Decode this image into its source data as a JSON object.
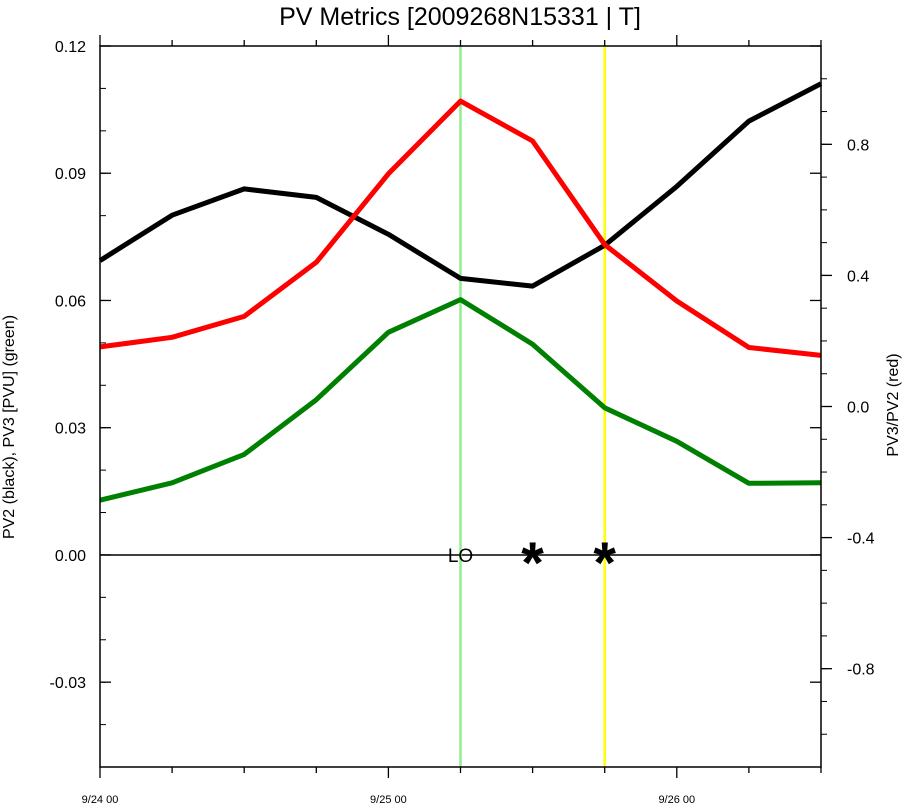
{
  "chart_data": {
    "type": "line",
    "title": "PV Metrics [2009268N15331 | T]",
    "x_tick_labels": [
      "9/24 00",
      "9/25 00",
      "9/26 00"
    ],
    "x_hours": [
      0,
      6,
      12,
      18,
      24,
      30,
      36,
      42,
      48,
      54,
      60
    ],
    "left_axis": {
      "label": "PV2 (black), PV3 [PVU] (green)",
      "ylim": [
        -0.05,
        0.12
      ],
      "ticks": [
        "0.12",
        "0.09",
        "0.06",
        "0.03",
        "0.00",
        "-0.03"
      ],
      "tick_values": [
        0.12,
        0.09,
        0.06,
        0.03,
        0.0,
        -0.03
      ]
    },
    "right_axis": {
      "label": "PV3/PV2 (red)",
      "ylim": [
        -1.1,
        1.1
      ],
      "ticks": [
        "0.8",
        "0.4",
        "0.0",
        "-0.4",
        "-0.8"
      ],
      "tick_values": [
        0.8,
        0.4,
        0.0,
        -0.4,
        -0.8
      ]
    },
    "series": [
      {
        "name": "PV2",
        "color": "#000000",
        "axis": "left",
        "values": [
          0.0694,
          0.0801,
          0.0863,
          0.0843,
          0.0756,
          0.0652,
          0.0634,
          0.073,
          0.0869,
          0.1023,
          0.1111
        ]
      },
      {
        "name": "PV3",
        "color": "#008000",
        "axis": "left",
        "values": [
          0.0129,
          0.017,
          0.0237,
          0.0366,
          0.0525,
          0.0602,
          0.0497,
          0.0347,
          0.0268,
          0.0169,
          0.017
        ]
      },
      {
        "name": "PV3/PV2",
        "color": "#ff0000",
        "axis": "right",
        "values": [
          0.182,
          0.211,
          0.275,
          0.44,
          0.71,
          0.932,
          0.81,
          0.494,
          0.322,
          0.18,
          0.156
        ]
      }
    ],
    "vertical_lines": [
      {
        "x_hour": 30,
        "color": "#90ee90"
      },
      {
        "x_hour": 42,
        "color": "#ffff00"
      }
    ],
    "annotations": [
      {
        "text": "LO",
        "x_hour": 30
      },
      {
        "text": "*",
        "x_hour": 36
      },
      {
        "text": "*",
        "x_hour": 42
      }
    ],
    "zero_line": true,
    "grid": false
  }
}
